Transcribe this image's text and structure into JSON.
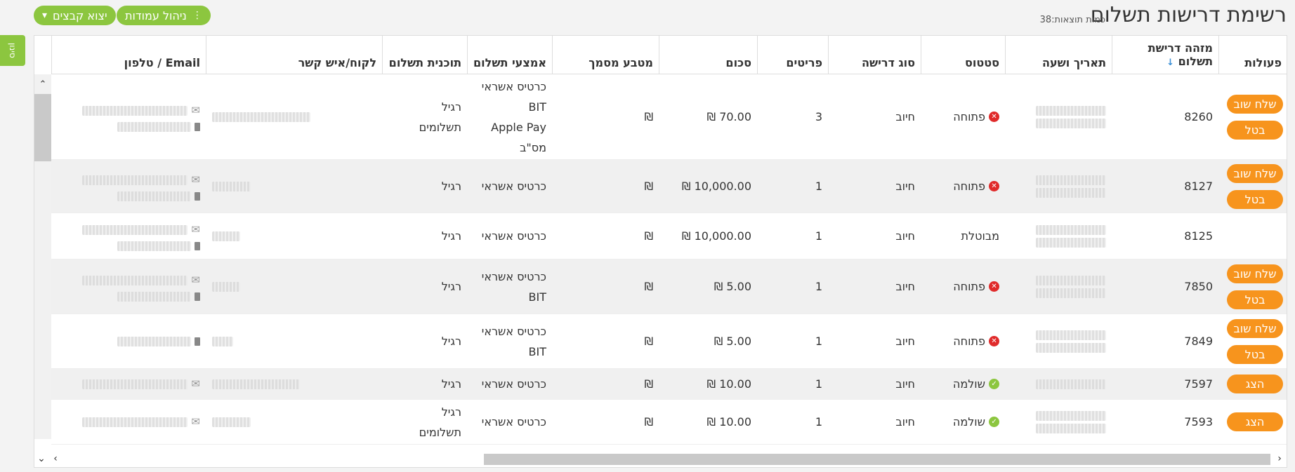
{
  "page": {
    "title": "רשימת דרישות תשלום",
    "result_count_label": "כמות תוצאות:",
    "result_count": "38"
  },
  "toolbar": {
    "columns_label": "ניהול עמודות",
    "export_label": "יצוא קבצים"
  },
  "side_tab": {
    "label": "סינון"
  },
  "columns": {
    "actions": "פעולות",
    "id": "מזהה דרישת תשלום",
    "date": "תאריך ושעה",
    "status": "סטטוס",
    "type": "סוג דרישה",
    "items": "פריטים",
    "sum": "סכום",
    "currency": "מטבע מסמך",
    "payment_methods": "אמצעי תשלום",
    "plan": "תוכנית תשלום",
    "customer": "לקוח/איש קשר",
    "email_phone": "Email / טלפון"
  },
  "action_labels": {
    "resend": "שלח שוב",
    "cancel": "בטל",
    "show": "הצג"
  },
  "rows": [
    {
      "id": "8260",
      "status": "פתוחה",
      "status_type": "open",
      "type": "חיוב",
      "items": "3",
      "sum": "70.00 ₪",
      "currency": "₪",
      "payment_methods": [
        "כרטיס אשראי",
        "BIT",
        "Apple Pay",
        "מס\"ב"
      ],
      "plan": [
        "רגיל",
        "תשלומים"
      ],
      "actions": [
        "resend",
        "cancel"
      ]
    },
    {
      "id": "8127",
      "status": "פתוחה",
      "status_type": "open",
      "type": "חיוב",
      "items": "1",
      "sum": "10,000.00 ₪",
      "currency": "₪",
      "payment_methods": [
        "כרטיס אשראי"
      ],
      "plan": [
        "רגיל"
      ],
      "actions": [
        "resend",
        "cancel"
      ]
    },
    {
      "id": "8125",
      "status": "מבוטלת",
      "status_type": "cancelled",
      "type": "חיוב",
      "items": "1",
      "sum": "10,000.00 ₪",
      "currency": "₪",
      "payment_methods": [
        "כרטיס אשראי"
      ],
      "plan": [
        "רגיל"
      ],
      "actions": []
    },
    {
      "id": "7850",
      "status": "פתוחה",
      "status_type": "open",
      "type": "חיוב",
      "items": "1",
      "sum": "5.00 ₪",
      "currency": "₪",
      "payment_methods": [
        "כרטיס אשראי",
        "BIT"
      ],
      "plan": [
        "רגיל"
      ],
      "actions": [
        "resend",
        "cancel"
      ]
    },
    {
      "id": "7849",
      "status": "פתוחה",
      "status_type": "open",
      "type": "חיוב",
      "items": "1",
      "sum": "5.00 ₪",
      "currency": "₪",
      "payment_methods": [
        "כרטיס אשראי",
        "BIT"
      ],
      "plan": [
        "רגיל"
      ],
      "actions": [
        "resend",
        "cancel"
      ]
    },
    {
      "id": "7597",
      "status": "שולמה",
      "status_type": "paid",
      "type": "חיוב",
      "items": "1",
      "sum": "10.00 ₪",
      "currency": "₪",
      "payment_methods": [
        "כרטיס אשראי"
      ],
      "plan": [
        "רגיל"
      ],
      "actions": [
        "show"
      ]
    },
    {
      "id": "7593",
      "status": "שולמה",
      "status_type": "paid",
      "type": "חיוב",
      "items": "1",
      "sum": "10.00 ₪",
      "currency": "₪",
      "payment_methods": [
        "כרטיס אשראי"
      ],
      "plan": [
        "רגיל",
        "תשלומים"
      ],
      "actions": [
        "show"
      ]
    }
  ],
  "colors": {
    "accent_green": "#8cc63f",
    "action_orange": "#f7941d",
    "error_red": "#e02b2b"
  },
  "icons": {
    "open": "x-circle-icon",
    "paid": "check-circle-icon",
    "email": "envelope-icon",
    "phone": "phone-icon"
  }
}
